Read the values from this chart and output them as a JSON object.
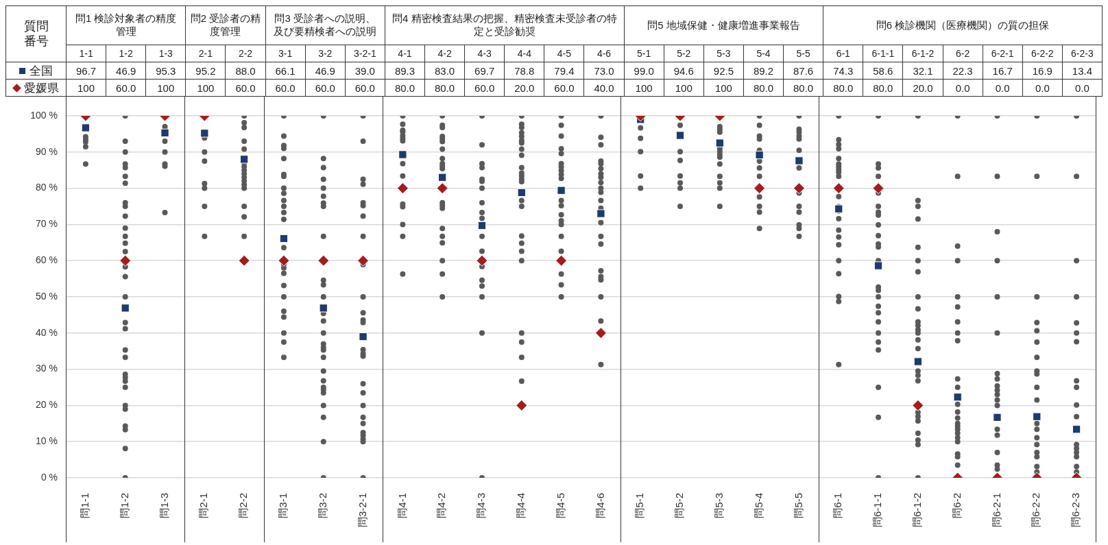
{
  "chart_data": {
    "type": "scatter",
    "annotations": [
      "質問番号",
      "問1 検診対象者の精度管理",
      "問2 受診者の精度管理",
      "問3 受診者への説明、及び要精検者への説明",
      "問4 精密検査結果の把握、精密検査未受診者の特定と受診勧奨",
      "問5 地域保健・健康増進事業報告",
      "問6 検診機関（医療機関）の質の担保",
      "1-1",
      "1-2",
      "1-3",
      "2-1",
      "2-2",
      "3-1",
      "3-2",
      "3-2-1",
      "4-1",
      "4-2",
      "4-3",
      "4-4",
      "4-5",
      "4-6",
      "5-1",
      "5-2",
      "5-3",
      "5-4",
      "5-5",
      "6-1",
      "6-1-1",
      "6-1-2",
      "6-2",
      "6-2-1",
      "6-2-2",
      "6-2-3"
    ],
    "categories": [
      "問1-1",
      "問1-2",
      "問1-3",
      "問2-1",
      "問2-2",
      "問3-1",
      "問3-2",
      "問3-2-1",
      "問4-1",
      "問4-2",
      "問4-3",
      "問4-4",
      "問4-5",
      "問4-6",
      "問5-1",
      "問5-2",
      "問5-3",
      "問5-4",
      "問5-5",
      "問6-1",
      "問6-1-1",
      "問6-1-2",
      "問6-2",
      "問6-2-1",
      "問6-2-2",
      "問6-2-3"
    ],
    "ylim": [
      0,
      100
    ],
    "yticks": [
      {
        "value": 0,
        "label": "0 %"
      },
      {
        "value": 10,
        "label": "10 %"
      },
      {
        "value": 20,
        "label": "20 %"
      },
      {
        "value": 30,
        "label": "30 %"
      },
      {
        "value": 40,
        "label": "40 %"
      },
      {
        "value": 50,
        "label": "50 %"
      },
      {
        "value": 60,
        "label": "60 %"
      },
      {
        "value": 70,
        "label": "70 %"
      },
      {
        "value": 80,
        "label": "80 %"
      },
      {
        "value": 90,
        "label": "90 %"
      },
      {
        "value": 100,
        "label": "100 %"
      }
    ],
    "grid": "y",
    "legend": "top left",
    "series": [
      {
        "color": "#595959",
        "marker": "circle",
        "x": [
          "問1-1",
          "問1-1",
          "問1-1",
          "問1-1",
          "問1-1",
          "問1-1",
          "問1-2",
          "問1-2",
          "問1-2",
          "問1-2",
          "問1-2",
          "問1-2",
          "問1-2",
          "問1-2",
          "問1-2",
          "問1-2",
          "問1-2",
          "問1-2",
          "問1-2",
          "問1-2",
          "問1-2",
          "問1-2",
          "問1-2",
          "問1-2",
          "問1-2",
          "問1-2",
          "問1-2",
          "問1-2",
          "問1-2",
          "問1-2",
          "問1-2",
          "問1-2",
          "問1-2",
          "問1-2",
          "問1-2",
          "問1-2",
          "問1-2",
          "問1-3",
          "問1-3",
          "問1-3",
          "問1-3",
          "問1-3",
          "問1-3",
          "問1-3",
          "問1-3",
          "問2-1",
          "問2-1",
          "問2-1",
          "問2-1",
          "問2-1",
          "問2-1",
          "問2-1",
          "問2-1",
          "問2-2",
          "問2-2",
          "問2-2",
          "問2-2",
          "問2-2",
          "問2-2",
          "問2-2",
          "問2-2",
          "問2-2",
          "問2-2",
          "問2-2",
          "問2-2",
          "問2-2",
          "問2-2",
          "問2-2",
          "問2-2",
          "問3-1",
          "問3-1",
          "問3-1",
          "問3-1",
          "問3-1",
          "問3-1",
          "問3-1",
          "問3-1",
          "問3-1",
          "問3-1",
          "問3-1",
          "問3-1",
          "問3-1",
          "問3-1",
          "問3-1",
          "問3-1",
          "問3-1",
          "問3-1",
          "問3-1",
          "問3-1",
          "問3-1",
          "問3-1",
          "問3-1",
          "問3-1",
          "問3-2",
          "問3-2",
          "問3-2",
          "問3-2",
          "問3-2",
          "問3-2",
          "問3-2",
          "問3-2",
          "問3-2",
          "問3-2",
          "問3-2",
          "問3-2",
          "問3-2",
          "問3-2",
          "問3-2",
          "問3-2",
          "問3-2",
          "問3-2",
          "問3-2",
          "問3-2",
          "問3-2",
          "問3-2",
          "問3-2",
          "問3-2",
          "問3-2",
          "問3-2",
          "問3-2",
          "問3-2",
          "問3-2-1",
          "問3-2-1",
          "問3-2-1",
          "問3-2-1",
          "問3-2-1",
          "問3-2-1",
          "問3-2-1",
          "問3-2-1",
          "問3-2-1",
          "問3-2-1",
          "問3-2-1",
          "問3-2-1",
          "問3-2-1",
          "問3-2-1",
          "問3-2-1",
          "問3-2-1",
          "問3-2-1",
          "問3-2-1",
          "問3-2-1",
          "問3-2-1",
          "問3-2-1",
          "問3-2-1",
          "問3-2-1",
          "問3-2-1",
          "問3-2-1",
          "問3-2-1",
          "問4-1",
          "問4-1",
          "問4-1",
          "問4-1",
          "問4-1",
          "問4-1",
          "問4-1",
          "問4-1",
          "問4-1",
          "問4-1",
          "問4-1",
          "問4-1",
          "問4-1",
          "問4-1",
          "問4-2",
          "問4-2",
          "問4-2",
          "問4-2",
          "問4-2",
          "問4-2",
          "問4-2",
          "問4-2",
          "問4-2",
          "問4-2",
          "問4-2",
          "問4-2",
          "問4-2",
          "問4-2",
          "問4-2",
          "問4-2",
          "問4-2",
          "問4-2",
          "問4-2",
          "問4-2",
          "問4-3",
          "問4-3",
          "問4-3",
          "問4-3",
          "問4-3",
          "問4-3",
          "問4-3",
          "問4-3",
          "問4-3",
          "問4-3",
          "問4-3",
          "問4-3",
          "問4-3",
          "問4-3",
          "問4-3",
          "問4-3",
          "問4-3",
          "問4-3",
          "問4-4",
          "問4-4",
          "問4-4",
          "問4-4",
          "問4-4",
          "問4-4",
          "問4-4",
          "問4-4",
          "問4-4",
          "問4-4",
          "問4-4",
          "問4-4",
          "問4-4",
          "問4-4",
          "問4-4",
          "問4-4",
          "問4-4",
          "問4-4",
          "問4-4",
          "問4-4",
          "問4-4",
          "問4-4",
          "問4-4",
          "問4-4",
          "問4-5",
          "問4-5",
          "問4-5",
          "問4-5",
          "問4-5",
          "問4-5",
          "問4-5",
          "問4-5",
          "問4-5",
          "問4-5",
          "問4-5",
          "問4-5",
          "問4-5",
          "問4-5",
          "問4-5",
          "問4-5",
          "問4-5",
          "問4-5",
          "問4-5",
          "問4-5",
          "問4-6",
          "問4-6",
          "問4-6",
          "問4-6",
          "問4-6",
          "問4-6",
          "問4-6",
          "問4-6",
          "問4-6",
          "問4-6",
          "問4-6",
          "問4-6",
          "問4-6",
          "問4-6",
          "問4-6",
          "問4-6",
          "問4-6",
          "問4-6",
          "問4-6",
          "問4-6",
          "問4-6",
          "問4-6",
          "問5-1",
          "問5-1",
          "問5-1",
          "問5-1",
          "問5-1",
          "問5-1",
          "問5-2",
          "問5-2",
          "問5-2",
          "問5-2",
          "問5-2",
          "問5-2",
          "問5-2",
          "問5-2",
          "問5-3",
          "問5-3",
          "問5-3",
          "問5-3",
          "問5-3",
          "問5-3",
          "問5-3",
          "問5-3",
          "問5-3",
          "問5-3",
          "問5-3",
          "問5-3",
          "問5-3",
          "問5-4",
          "問5-4",
          "問5-4",
          "問5-4",
          "問5-4",
          "問5-4",
          "問5-4",
          "問5-4",
          "問5-4",
          "問5-4",
          "問5-4",
          "問5-4",
          "問5-5",
          "問5-5",
          "問5-5",
          "問5-5",
          "問5-5",
          "問5-5",
          "問5-5",
          "問5-5",
          "問5-5",
          "問5-5",
          "問5-5",
          "問5-5",
          "問5-5",
          "問6-1",
          "問6-1",
          "問6-1",
          "問6-1",
          "問6-1",
          "問6-1",
          "問6-1",
          "問6-1",
          "問6-1",
          "問6-1",
          "問6-1",
          "問6-1",
          "問6-1",
          "問6-1",
          "問6-1",
          "問6-1",
          "問6-1",
          "問6-1",
          "問6-1",
          "問6-1",
          "問6-1",
          "問6-1",
          "問6-1-1",
          "問6-1-1",
          "問6-1-1",
          "問6-1-1",
          "問6-1-1",
          "問6-1-1",
          "問6-1-1",
          "問6-1-1",
          "問6-1-1",
          "問6-1-1",
          "問6-1-1",
          "問6-1-1",
          "問6-1-1",
          "問6-1-1",
          "問6-1-1",
          "問6-1-1",
          "問6-1-1",
          "問6-1-1",
          "問6-1-1",
          "問6-1-1",
          "問6-1-1",
          "問6-1-1",
          "問6-1-1",
          "問6-1-1",
          "問6-1-1",
          "問6-1-2",
          "問6-1-2",
          "問6-1-2",
          "問6-1-2",
          "問6-1-2",
          "問6-1-2",
          "問6-1-2",
          "問6-1-2",
          "問6-1-2",
          "問6-1-2",
          "問6-1-2",
          "問6-1-2",
          "問6-1-2",
          "問6-1-2",
          "問6-1-2",
          "問6-1-2",
          "問6-1-2",
          "問6-1-2",
          "問6-1-2",
          "問6-1-2",
          "問6-1-2",
          "問6-1-2",
          "問6-1-2",
          "問6-1-2",
          "問6-1-2",
          "問6-2",
          "問6-2",
          "問6-2",
          "問6-2",
          "問6-2",
          "問6-2",
          "問6-2",
          "問6-2",
          "問6-2",
          "問6-2",
          "問6-2",
          "問6-2",
          "問6-2",
          "問6-2",
          "問6-2",
          "問6-2",
          "問6-2",
          "問6-2",
          "問6-2",
          "問6-2",
          "問6-2",
          "問6-2",
          "問6-2",
          "問6-2-1",
          "問6-2-1",
          "問6-2-1",
          "問6-2-1",
          "問6-2-1",
          "問6-2-1",
          "問6-2-1",
          "問6-2-1",
          "問6-2-1",
          "問6-2-1",
          "問6-2-1",
          "問6-2-1",
          "問6-2-1",
          "問6-2-1",
          "問6-2-1",
          "問6-2-1",
          "問6-2-1",
          "問6-2-1",
          "問6-2-2",
          "問6-2-2",
          "問6-2-2",
          "問6-2-2",
          "問6-2-2",
          "問6-2-2",
          "問6-2-2",
          "問6-2-2",
          "問6-2-2",
          "問6-2-2",
          "問6-2-2",
          "問6-2-2",
          "問6-2-2",
          "問6-2-2",
          "問6-2-2",
          "問6-2-2",
          "問6-2-2",
          "問6-2-2",
          "問6-2-2",
          "問6-2-3",
          "問6-2-3",
          "問6-2-3",
          "問6-2-3",
          "問6-2-3",
          "問6-2-3",
          "問6-2-3",
          "問6-2-3",
          "問6-2-3",
          "問6-2-3",
          "問6-2-3",
          "問6-2-3",
          "問6-2-3",
          "問6-2-3",
          "問6-2-3",
          "問6-2-3",
          "問6-2-3"
        ],
        "values": [
          null,
          94.2,
          93.5,
          92.8,
          91.5,
          86.7,
          100,
          93,
          90,
          86.7,
          85.7,
          83.3,
          81.4,
          76,
          75,
          72.3,
          69,
          66.7,
          64.8,
          62.5,
          58.3,
          55.6,
          50,
          42.9,
          41.2,
          35.3,
          33.3,
          28.6,
          27.7,
          26.7,
          25,
          20,
          19,
          14.3,
          13.3,
          8.1,
          0,
          null,
          97,
          96.3,
          93,
          90,
          86.7,
          86.1,
          73.3,
          null,
          93.9,
          90,
          87.5,
          81.3,
          80,
          75,
          66.7,
          100,
          98.1,
          96.8,
          93,
          90.8,
          87,
          86,
          85,
          84,
          83,
          82,
          81,
          80,
          75,
          72.1,
          66.7,
          100,
          94.4,
          91.8,
          91,
          88.2,
          83.8,
          83.3,
          80,
          78.6,
          76.6,
          75,
          73.3,
          71.4,
          63.6,
          59,
          58,
          56.5,
          53.1,
          50,
          46,
          44.4,
          40,
          37.5,
          33.3,
          100,
          88.2,
          85.7,
          82.5,
          80,
          77.8,
          75.9,
          75,
          66.7,
          54.6,
          53.3,
          50,
          45.4,
          43.3,
          40,
          37,
          36,
          35.3,
          33.3,
          29.5,
          26.8,
          25,
          24.4,
          23.5,
          20,
          16.7,
          10,
          0,
          100,
          93,
          82.5,
          81.1,
          76,
          75.2,
          72.3,
          66.7,
          58.9,
          50,
          45.6,
          43.6,
          42.9,
          35.4,
          34.3,
          33.6,
          26,
          23.5,
          20,
          16.7,
          15,
          12.5,
          11.7,
          10.7,
          10,
          0,
          100,
          97.7,
          96,
          95.6,
          94.5,
          93.8,
          93.1,
          86.8,
          83.4,
          75.6,
          74.9,
          70,
          66.7,
          56.3,
          100,
          97.4,
          96.8,
          94.3,
          93.6,
          92.9,
          90.8,
          88.2,
          86.8,
          86.1,
          85.4,
          76,
          75.3,
          74.5,
          68.9,
          66.7,
          64.9,
          60,
          56.3,
          50,
          100,
          92,
          86.8,
          85.7,
          82.5,
          81.9,
          80,
          76,
          73.3,
          71.7,
          66.7,
          62.6,
          58.4,
          54.6,
          53,
          50,
          40,
          0,
          100,
          97.7,
          96.8,
          95.3,
          94.3,
          93.2,
          92.5,
          90.8,
          89.1,
          85.7,
          84.2,
          83.4,
          82.5,
          81.8,
          76.6,
          75,
          66.8,
          64.8,
          62.6,
          60,
          40,
          37.5,
          33.3,
          26.7,
          100,
          97.4,
          94.4,
          90.9,
          89.6,
          86.8,
          85.9,
          84.9,
          83.8,
          82.7,
          76.6,
          75.2,
          72.7,
          71,
          70,
          66.7,
          62.6,
          56.3,
          53.3,
          50,
          100,
          94.1,
          92,
          87.5,
          86.8,
          85.4,
          84,
          83,
          81.6,
          80,
          78.9,
          76.6,
          74.5,
          70.5,
          66.7,
          64.6,
          57.2,
          55.6,
          54.7,
          50,
          43.3,
          31.3,
          null,
          96.7,
          93.8,
          90.1,
          83.4,
          80,
          null,
          97.4,
          90.1,
          87.7,
          83.4,
          81.5,
          80,
          75,
          null,
          97,
          96.3,
          95.5,
          91,
          90.2,
          89.4,
          88.6,
          86.7,
          83.3,
          81.5,
          80,
          75,
          100,
          97.4,
          94.4,
          93.6,
          90.5,
          87.5,
          85.6,
          83.3,
          77.6,
          75,
          73.4,
          68.9,
          100,
          96.3,
          95.5,
          94.4,
          93.6,
          90.5,
          85.6,
          78.7,
          75,
          73.4,
          69.9,
          68.9,
          66.7,
          100,
          93.4,
          92.1,
          90.9,
          88.2,
          86.7,
          86,
          85.2,
          84.4,
          83.3,
          77.7,
          74.9,
          73.7,
          71.6,
          68.4,
          66.5,
          64.4,
          60,
          56.4,
          50.1,
          48.7,
          31.3,
          100,
          86.7,
          85.6,
          83.3,
          78.7,
          75,
          73.4,
          72.6,
          69.9,
          66.9,
          64.6,
          63.8,
          60,
          52.7,
          51.8,
          50,
          47.4,
          45.6,
          43.1,
          40,
          37.5,
          35.3,
          25,
          16.7,
          0,
          100,
          76.6,
          75,
          71.5,
          63.7,
          60,
          56.9,
          50,
          46.7,
          43.1,
          42.1,
          40.9,
          40,
          38.1,
          35.7,
          29.5,
          28.3,
          26.8,
          18.1,
          16.9,
          15.7,
          12.3,
          10.4,
          9.2,
          0,
          100,
          83.3,
          64,
          60,
          50,
          47.2,
          43.1,
          40,
          37.9,
          27.3,
          25,
          20.3,
          18.2,
          16.5,
          15,
          14.2,
          13.4,
          12.3,
          11.1,
          10,
          6.6,
          5.8,
          3.5,
          100,
          83.3,
          68,
          60,
          50,
          40,
          28.8,
          27.3,
          25.4,
          24.2,
          23,
          21.5,
          20,
          13.4,
          11.8,
          7,
          3.5,
          2.4,
          100,
          83.3,
          50,
          42.9,
          40.6,
          37.5,
          33.3,
          29.5,
          28.7,
          25,
          21.5,
          15,
          13.4,
          11.1,
          9.2,
          7,
          5.8,
          3.1,
          1.6,
          100,
          83.3,
          60,
          50,
          42.8,
          40,
          37.6,
          26.8,
          25,
          20.1,
          16.9,
          9.2,
          8.1,
          7,
          5.8,
          3.1,
          1.6
        ]
      },
      {
        "name": "全国",
        "color": "#1f3a6e",
        "marker": "square",
        "values": [
          96.7,
          46.9,
          95.3,
          95.2,
          88.0,
          66.1,
          46.9,
          39.0,
          89.3,
          83.0,
          69.7,
          78.8,
          79.4,
          73.0,
          99.0,
          94.6,
          92.5,
          89.2,
          87.6,
          74.3,
          58.6,
          32.1,
          22.3,
          16.7,
          16.9,
          13.4
        ],
        "value_labels": [
          "96.7",
          "46.9",
          "95.3",
          "95.2",
          "88.0",
          "66.1",
          "46.9",
          "39.0",
          "89.3",
          "83.0",
          "69.7",
          "78.8",
          "79.4",
          "73.0",
          "99.0",
          "94.6",
          "92.5",
          "89.2",
          "87.6",
          "74.3",
          "58.6",
          "32.1",
          "22.3",
          "16.7",
          "16.9",
          "13.4"
        ]
      },
      {
        "name": "愛媛県",
        "color": "#a51c1c",
        "marker": "diamond",
        "values": [
          100,
          60.0,
          100,
          100,
          60.0,
          60.0,
          60.0,
          60.0,
          80.0,
          80.0,
          60.0,
          20.0,
          60.0,
          40.0,
          100,
          100,
          100,
          80.0,
          80.0,
          80.0,
          80.0,
          20.0,
          0.0,
          0.0,
          0.0,
          0.0
        ],
        "value_labels": [
          "100",
          "60.0",
          "100",
          "100",
          "60.0",
          "60.0",
          "60.0",
          "60.0",
          "80.0",
          "80.0",
          "60.0",
          "20.0",
          "60.0",
          "40.0",
          "100",
          "100",
          "100",
          "80.0",
          "80.0",
          "80.0",
          "80.0",
          "20.0",
          "0.0",
          "0.0",
          "0.0",
          "0.0"
        ]
      }
    ]
  }
}
